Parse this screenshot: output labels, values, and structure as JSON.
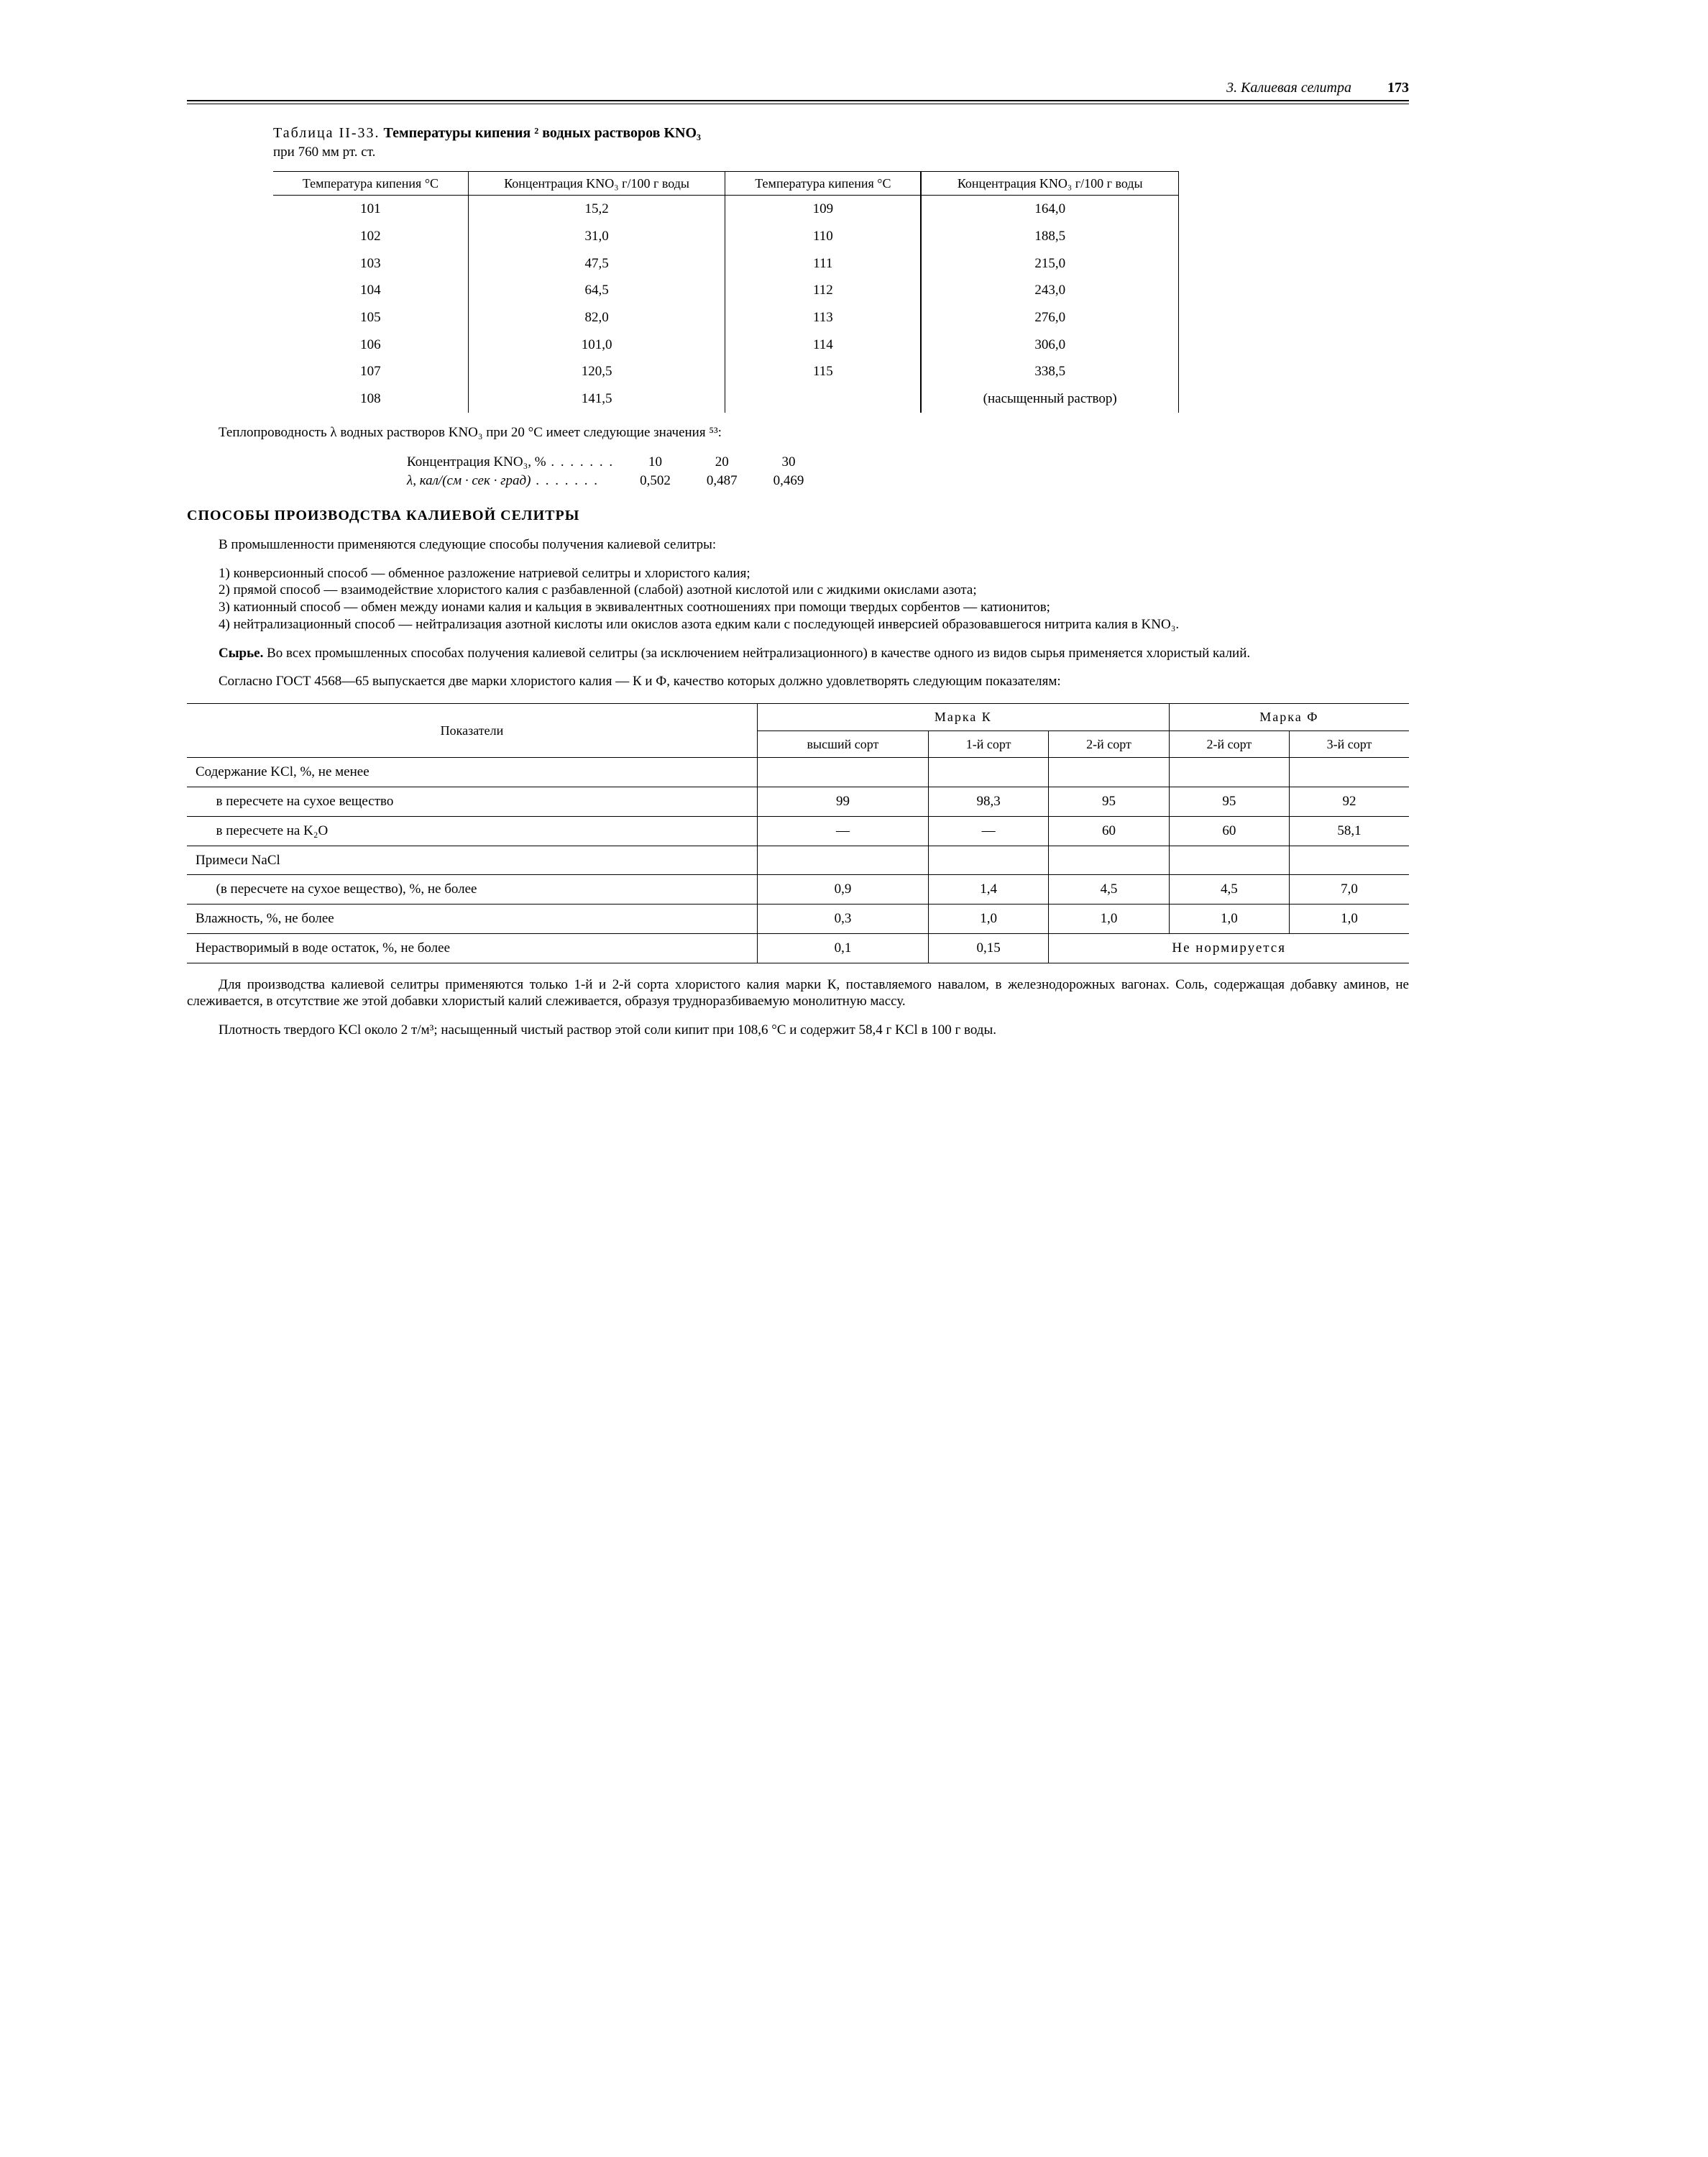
{
  "header": {
    "section": "3. Калиевая селитра",
    "page_number": "173"
  },
  "table33": {
    "caption_prefix": "Таблица II-33.",
    "caption_main": "Температуры кипения ² водных растворов KNO₃",
    "caption_sub": "при 760 мм рт. ст.",
    "head": {
      "c1": "Температура кипения °C",
      "c2": "Концентрация KNO₃ г/100 г воды",
      "c3": "Температура кипения °C",
      "c4": "Концентрация KNO₃ г/100 г воды"
    },
    "left_temp": [
      "101",
      "102",
      "103",
      "104",
      "105",
      "106",
      "107",
      "108"
    ],
    "left_conc": [
      "15,2",
      "31,0",
      "47,5",
      "64,5",
      "82,0",
      "101,0",
      "120,5",
      "141,5"
    ],
    "right_temp": [
      "109",
      "110",
      "111",
      "112",
      "113",
      "114",
      "115",
      ""
    ],
    "right_conc": [
      "164,0",
      "188,5",
      "215,0",
      "243,0",
      "276,0",
      "306,0",
      "338,5",
      "(насыщенный раствор)"
    ]
  },
  "thermal_line": "Теплопроводность λ водных растворов KNO₃ при 20 °C имеет следующие значения ⁵³:",
  "thermal_table": {
    "row1_label": "Концентрация KNO₃, %",
    "row1_vals": [
      "10",
      "20",
      "30"
    ],
    "row2_label": "λ, кал/(см · сек · град)",
    "row2_vals": [
      "0,502",
      "0,487",
      "0,469"
    ]
  },
  "section_title": "СПОСОБЫ ПРОИЗВОДСТВА КАЛИЕВОЙ СЕЛИТРЫ",
  "p_intro": "В промышленности применяются следующие способы получения калиевой селитры:",
  "methods": [
    "1) конверсионный способ — обменное разложение натриевой селитры и хлористого калия;",
    "2) прямой способ — взаимодействие хлористого калия с разбавленной (слабой) азотной кислотой или с жидкими окислами азота;",
    "3) катионный способ — обмен между ионами калия и кальция в эквивалентных соотношениях при помощи твердых сорбентов — катионитов;",
    "4) нейтрализационный способ — нейтрализация азотной кислоты или окислов азота едким кали с последующей инверсией образовавшегося нитрита калия в KNO₃."
  ],
  "p_raw": "Сырье. Во всех промышленных способах получения калиевой селитры (за исключением нейтрализационного) в качестве одного из видов сырья применяется хлористый калий.",
  "p_gost": "Согласно ГОСТ 4568—65 выпускается две марки хлористого калия — К и Ф, качество которых должно удовлетворять следующим показателям:",
  "table2": {
    "head": {
      "indicator": "Показатели",
      "markK": "Марка К",
      "markF": "Марка Ф",
      "c1": "высший сорт",
      "c2": "1-й сорт",
      "c3": "2-й сорт",
      "c4": "2-й сорт",
      "c5": "3-й сорт"
    },
    "rows": [
      {
        "label": "Содержание KCl, %, не менее",
        "v": [
          "",
          "",
          "",
          "",
          ""
        ]
      },
      {
        "label": "      в пересчете на сухое вещество",
        "v": [
          "99",
          "98,3",
          "95",
          "95",
          "92"
        ]
      },
      {
        "label": "      в пересчете на K₂O",
        "v": [
          "—",
          "—",
          "60",
          "60",
          "58,1"
        ]
      },
      {
        "label": "Примеси NaCl",
        "v": [
          "",
          "",
          "",
          "",
          ""
        ]
      },
      {
        "label": "      (в пересчете на сухое вещество), %, не более",
        "v": [
          "0,9",
          "1,4",
          "4,5",
          "4,5",
          "7,0"
        ]
      },
      {
        "label": "Влажность, %, не более",
        "v": [
          "0,3",
          "1,0",
          "1,0",
          "1,0",
          "1,0"
        ]
      },
      {
        "label": "Нерастворимый в воде остаток, %, не более",
        "v": [
          "0,1",
          "0,15",
          "colspan:Не нормируется",
          "",
          ""
        ]
      }
    ]
  },
  "p_after1": "Для производства калиевой селитры применяются только 1-й и 2-й сорта хлористого калия марки К, поставляемого навалом, в железнодорожных вагонах. Соль, содержащая добавку аминов, не слеживается, в отсутствие же этой добавки хлористый калий слеживается, образуя трудноразбиваемую монолитную массу.",
  "p_after2": "Плотность твердого KCl около 2 т/м³; насыщенный чистый раствор этой соли кипит при 108,6 °C и содержит 58,4 г KCl в 100 г воды."
}
